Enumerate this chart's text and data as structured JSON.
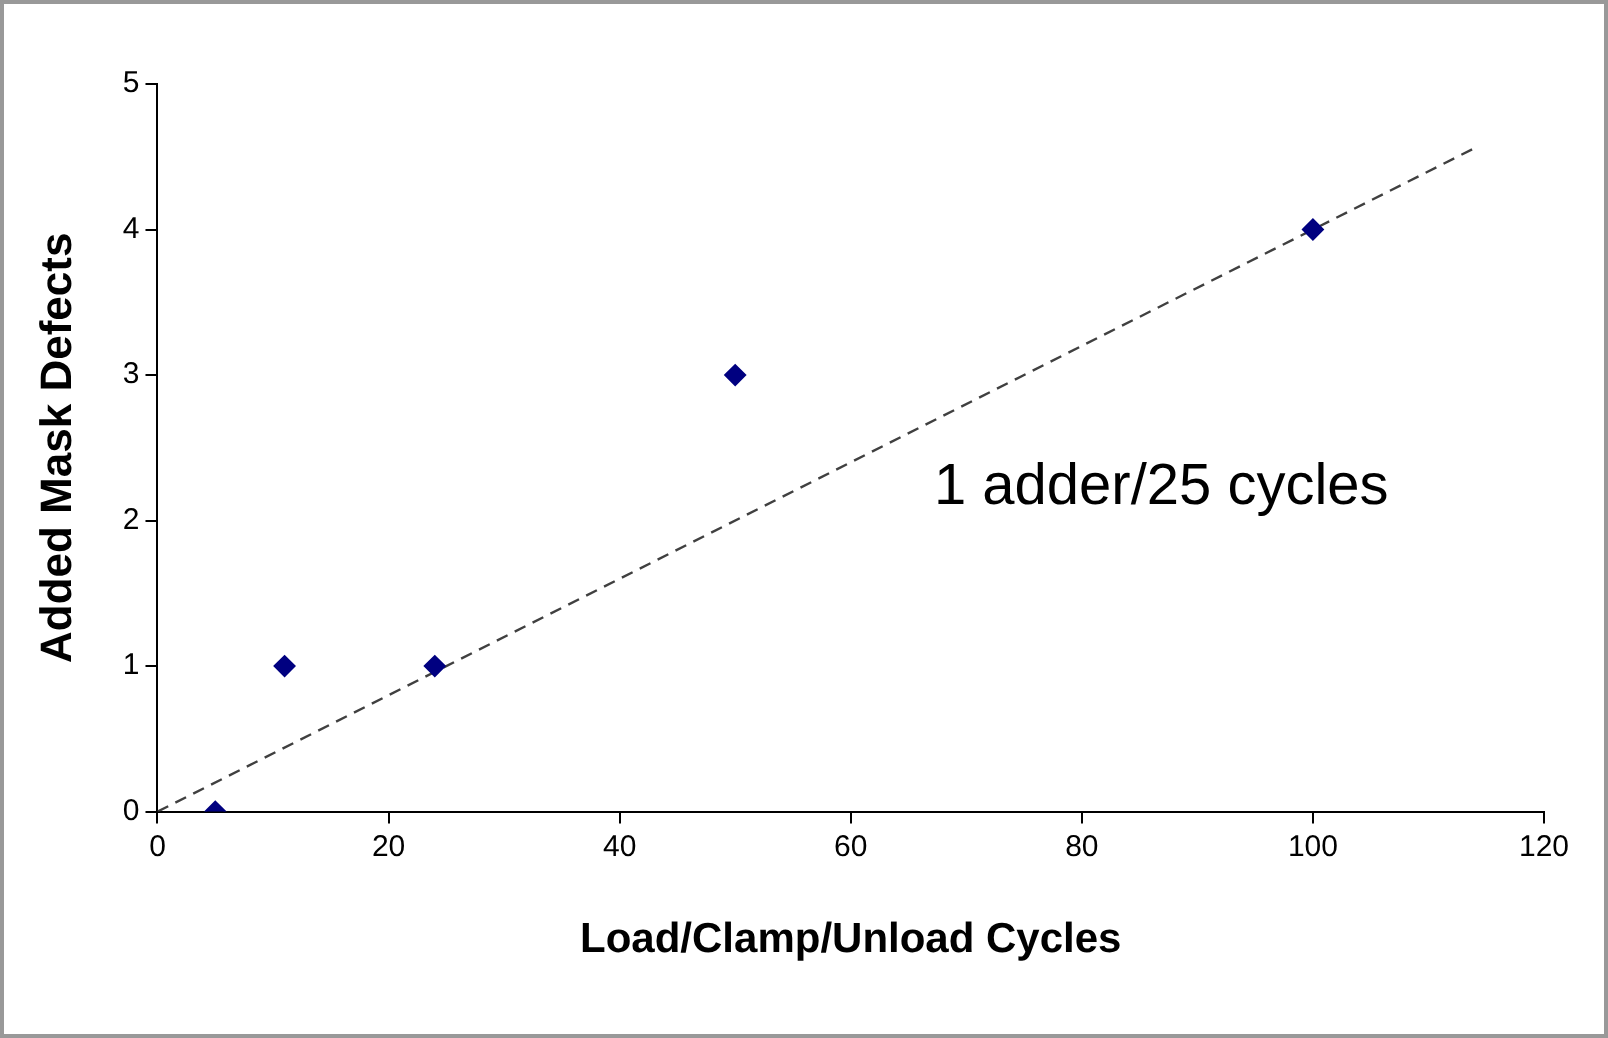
{
  "chart_data": {
    "type": "scatter",
    "xlabel": "Load/Clamp/Unload Cycles",
    "ylabel": "Added Mask Defects",
    "xlim": [
      0,
      120
    ],
    "xticks": [
      0,
      20,
      40,
      60,
      80,
      100,
      120
    ],
    "ylim": [
      0,
      5
    ],
    "yticks": [
      0,
      1,
      2,
      3,
      4,
      5
    ],
    "grid": false,
    "legend": false,
    "marker": "diamond",
    "series": [
      {
        "color": "#000080",
        "x": [
          5,
          11,
          24,
          50,
          100
        ],
        "values": [
          0,
          1,
          1,
          3,
          4
        ]
      },
      {
        "type": "line",
        "color": "#404040",
        "line_style": "dashed",
        "marker": "none",
        "x": [
          0,
          114
        ],
        "values": [
          0,
          4.56
        ]
      }
    ],
    "annotations": [
      "1 adder/25 cycles"
    ]
  }
}
